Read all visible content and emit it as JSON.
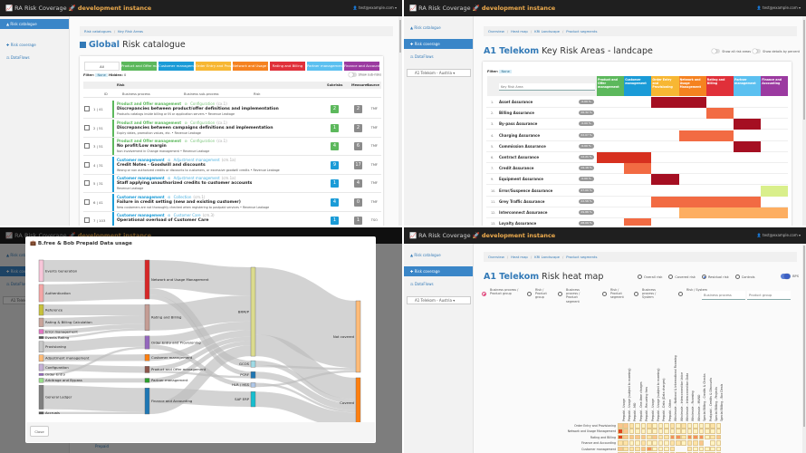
{
  "app": {
    "name": "RA Risk Coverage",
    "instance": "development instance",
    "user": "test@example.com",
    "accent": "#337ab7",
    "instance_color": "#f0ad4e"
  },
  "sidebar": {
    "risk_catalogue": "Risk catalogue",
    "risk_coverage": "Risk coverage",
    "dataflows": "DataFlows",
    "operator_select": "A1 Telekom - Austria"
  },
  "catalogue": {
    "breadcrumb": [
      "Risk catalogues",
      "Key Risk Areas"
    ],
    "title_strong": "Global",
    "title_rest": "Risk catalogue",
    "tabs": [
      {
        "label": "All",
        "color": "#ffffff"
      },
      {
        "label": "Product and Offer management",
        "color": "#5cb85c"
      },
      {
        "label": "Customer management",
        "color": "#1a9bd7"
      },
      {
        "label": "Order Entry and Provisioning",
        "color": "#f7b733"
      },
      {
        "label": "Network and Usage Management",
        "color": "#f58220"
      },
      {
        "label": "Rating and Billing",
        "color": "#e0303a"
      },
      {
        "label": "Partner management",
        "color": "#5bc0f0"
      },
      {
        "label": "Finance and Accounting",
        "color": "#9b3aa0"
      }
    ],
    "filter_label": "Filter:",
    "filter_value": "None",
    "hidden_label": "Hidden:",
    "hidden_value": "0",
    "show_subrisks": "Show sub-risks",
    "columns": {
      "risk": "Risk",
      "subrisks": "Subrisks",
      "measures": "Measures",
      "source": "Source",
      "id": "ID",
      "process": "Business process",
      "subprocess": "Business sub-process",
      "risk_sub": "Risk"
    },
    "rows": [
      {
        "id": "1 | 41",
        "process": "Product and Offer management",
        "subprocess": "Configuration",
        "code": "(cx.1)",
        "title": "Discrepancies between product/offer definitions and implementation",
        "desc": "Products catalogs inside billing or IN or application servers",
        "impact": "Revenue Leakage",
        "subrisks": "2",
        "measures": "2",
        "source": "TMF",
        "color": "#5cb85c"
      },
      {
        "id": "2 | 51",
        "process": "Product and Offer management",
        "subprocess": "Configuration",
        "code": "(cx.1)",
        "title": "Discrepancies between campaigns definitions and implementation",
        "desc": "Expiry dates, promotion values, etc.",
        "impact": "Revenue Leakage",
        "subrisks": "1",
        "measures": "2",
        "source": "TMF",
        "color": "#5cb85c"
      },
      {
        "id": "3 | 51",
        "process": "Product and Offer management",
        "subprocess": "Configuration",
        "code": "(cx.1)",
        "title": "No profit/Low margin",
        "desc": "Non involvement in Change management",
        "impact": "Revenue Leakage",
        "subrisks": "4",
        "measures": "6",
        "source": "TMF",
        "color": "#5cb85c"
      },
      {
        "id": "4 | 31",
        "process": "Customer management",
        "subprocess": "Adjustment management",
        "code": "(cm.1a)",
        "title": "Credit Notes - Goodwill and discounts",
        "desc": "Wrong or non authorized credits or discounts to customers, or excessive goodwill credits",
        "impact": "Revenue Leakage",
        "subrisks": "9",
        "measures": "17",
        "source": "TMF",
        "color": "#1a9bd7"
      },
      {
        "id": "5 | 31",
        "process": "Customer management",
        "subprocess": "Adjustment management",
        "code": "(cm.1a)",
        "title": "Staff applying unauthorized credits to customer accounts",
        "desc": "",
        "impact": "Revenue Leakage",
        "subrisks": "1",
        "measures": "4",
        "source": "TMF",
        "color": "#1a9bd7"
      },
      {
        "id": "6 | 41",
        "process": "Customer management",
        "subprocess": "Collection",
        "code": "(cm.1)",
        "title": "Failure in credit setting (new and existing customer)",
        "desc": "New customers are not thoroughly checked when registering to postpaid services",
        "impact": "Revenue Leakage",
        "subrisks": "4",
        "measures": "0",
        "source": "TMF",
        "color": "#1a9bd7"
      },
      {
        "id": "7 | 103",
        "process": "Customer management",
        "subprocess": "Customer Care",
        "code": "(cm.3)",
        "title": "Operational overload of Customer Care",
        "desc": "",
        "impact": "",
        "subrisks": "1",
        "measures": "1",
        "source": "TSO",
        "color": "#1a9bd7"
      }
    ]
  },
  "kra": {
    "breadcrumb": [
      "Overview",
      "Heat map",
      "KRI Landscape",
      "Product segments"
    ],
    "title_strong": "A1 Telekom",
    "title_rest": "Key Risk Areas - landcape",
    "toggle_all": "Show all risk areas",
    "toggle_percent": "Show details by percent",
    "filter_label": "Filter:",
    "filter_value": "None",
    "search_placeholder": "Key Risk Area",
    "columns": [
      {
        "label": "Product and Offer management",
        "color": "#5cb85c"
      },
      {
        "label": "Customer management",
        "color": "#1a9bd7"
      },
      {
        "label": "Order Entry and Provisioning",
        "color": "#f7b733"
      },
      {
        "label": "Network and Usage Management",
        "color": "#f58220"
      },
      {
        "label": "Rating and Billing",
        "color": "#e0303a"
      },
      {
        "label": "Partner management",
        "color": "#5bc0f0"
      },
      {
        "label": "Finance and Accounting",
        "color": "#9b3aa0"
      }
    ],
    "level_colors": {
      "d": "#a50f22",
      "r": "#d7301f",
      "o": "#f26b43",
      "l": "#fdae61",
      "g": "#d9ef8b"
    },
    "rows": [
      {
        "n": "1",
        "name": "Asset Assurance",
        "pct": "0.00 %",
        "cells": [
          "",
          "",
          "d",
          "d",
          "",
          "",
          ""
        ]
      },
      {
        "n": "2",
        "name": "Billing Assurance",
        "pct": "26.32 %",
        "cells": [
          "",
          "",
          "",
          "",
          "o",
          "",
          ""
        ]
      },
      {
        "n": "3",
        "name": "By-pass Assurance",
        "pct": "0.00 %",
        "cells": [
          "",
          "",
          "",
          "",
          "",
          "d",
          ""
        ]
      },
      {
        "n": "4",
        "name": "Charging Assurance",
        "pct": "22.07 %",
        "cells": [
          "",
          "",
          "",
          "o",
          "o",
          "",
          ""
        ]
      },
      {
        "n": "5",
        "name": "Commission Assurance",
        "pct": "0.00 %",
        "cells": [
          "",
          "",
          "",
          "",
          "",
          "d",
          ""
        ]
      },
      {
        "n": "6",
        "name": "Contract Assurance",
        "pct": "12.21 %",
        "cells": [
          "r",
          "r",
          "",
          "",
          "",
          "",
          ""
        ]
      },
      {
        "n": "7",
        "name": "Credit Assurance",
        "pct": "19.18 %",
        "cells": [
          "",
          "o",
          "",
          "",
          "",
          "",
          ""
        ]
      },
      {
        "n": "9",
        "name": "Equipment Assurance",
        "pct": "0.00 %",
        "cells": [
          "",
          "",
          "d",
          "",
          "",
          "",
          ""
        ]
      },
      {
        "n": "10",
        "name": "Error/Suspence Assurance",
        "pct": "47.00 %",
        "cells": [
          "",
          "",
          "",
          "",
          "",
          "",
          "g"
        ]
      },
      {
        "n": "11",
        "name": "Grey Traffic Assurance",
        "pct": "22.58 %",
        "cells": [
          "",
          "",
          "o",
          "o",
          "o",
          "o",
          ""
        ]
      },
      {
        "n": "12",
        "name": "Interconnect Assurance",
        "pct": "29.88 %",
        "cells": [
          "",
          "",
          "",
          "l",
          "l",
          "l",
          "l"
        ]
      },
      {
        "n": "13",
        "name": "Loyalty Assurance",
        "pct": "28.09 %",
        "cells": [
          "",
          "o",
          "",
          "",
          "",
          "",
          ""
        ]
      }
    ]
  },
  "sankey": {
    "title": "B.free & Bob Prepaid Data usage",
    "close_label": "Close",
    "background_row": "Prepaid",
    "nodes": [
      {
        "name": "Events Generation",
        "col": 0,
        "color": "#f7c6d9"
      },
      {
        "name": "Authentication",
        "col": 0,
        "color": "#f4a6a6"
      },
      {
        "name": "Reference",
        "col": 0,
        "color": "#c7c03a"
      },
      {
        "name": "Rating & Billing Calculation",
        "col": 0,
        "color": "#c9a49a"
      },
      {
        "name": "Error management",
        "col": 0,
        "color": "#e377c2"
      },
      {
        "name": "Events Rating",
        "col": 0,
        "color": "#555555"
      },
      {
        "name": "Provisioning",
        "col": 0,
        "color": "#c7c7c7"
      },
      {
        "name": "Adjustment management",
        "col": 0,
        "color": "#ffbb78"
      },
      {
        "name": "Configuration",
        "col": 0,
        "color": "#c5b0d5"
      },
      {
        "name": "Order Entry",
        "col": 0,
        "color": "#9467bd"
      },
      {
        "name": "Arbitrage and Bypass",
        "col": 0,
        "color": "#98df8a"
      },
      {
        "name": "General Ledger",
        "col": 0,
        "color": "#7f7f7f"
      },
      {
        "name": "Accruals",
        "col": 0,
        "color": "#555555"
      },
      {
        "name": "Network and Usage Management",
        "col": 1,
        "color": "#d62728"
      },
      {
        "name": "Rating and Billing",
        "col": 1,
        "color": "#c49c94"
      },
      {
        "name": "Order Entry and Provisioning",
        "col": 1,
        "color": "#9467bd"
      },
      {
        "name": "Customer management",
        "col": 1,
        "color": "#ff7f0e"
      },
      {
        "name": "Product and Offer management",
        "col": 1,
        "color": "#8c564b"
      },
      {
        "name": "Partner management",
        "col": 1,
        "color": "#2ca02c"
      },
      {
        "name": "Finance and Accounting",
        "col": 1,
        "color": "#1f77b4"
      },
      {
        "name": "BRM/P",
        "col": 2,
        "color": "#dbdb8d"
      },
      {
        "name": "GCOS",
        "col": 2,
        "color": "#9edae5"
      },
      {
        "name": "PCRF",
        "col": 2,
        "color": "#1f77b4"
      },
      {
        "name": "HLR / HSS",
        "col": 2,
        "color": "#aec7e8"
      },
      {
        "name": "SAP ERP",
        "col": 2,
        "color": "#17becf"
      },
      {
        "name": "Not covered",
        "col": 3,
        "color": "#ffbb78"
      },
      {
        "name": "Covered",
        "col": 3,
        "color": "#ff7f0e"
      }
    ],
    "links": [
      [
        0,
        13,
        10
      ],
      [
        1,
        13,
        8
      ],
      [
        2,
        14,
        5
      ],
      [
        3,
        14,
        4
      ],
      [
        4,
        14,
        2
      ],
      [
        5,
        14,
        1
      ],
      [
        6,
        15,
        5
      ],
      [
        7,
        16,
        3
      ],
      [
        8,
        17,
        3
      ],
      [
        9,
        15,
        1
      ],
      [
        10,
        18,
        2
      ],
      [
        11,
        19,
        11
      ],
      [
        12,
        19,
        1
      ],
      [
        13,
        20,
        13
      ],
      [
        13,
        21,
        3
      ],
      [
        13,
        22,
        2
      ],
      [
        14,
        20,
        12
      ],
      [
        15,
        20,
        4
      ],
      [
        15,
        23,
        2
      ],
      [
        16,
        20,
        3
      ],
      [
        17,
        20,
        2
      ],
      [
        17,
        22,
        1
      ],
      [
        18,
        20,
        2
      ],
      [
        19,
        24,
        7
      ],
      [
        19,
        20,
        5
      ],
      [
        20,
        25,
        31
      ],
      [
        20,
        26,
        10
      ],
      [
        21,
        26,
        2
      ],
      [
        21,
        25,
        1
      ],
      [
        22,
        26,
        3
      ],
      [
        23,
        26,
        1
      ],
      [
        23,
        25,
        1
      ],
      [
        24,
        26,
        7
      ]
    ]
  },
  "heatmap": {
    "breadcrumb": [
      "Overview",
      "Heat map",
      "KRI Landscape",
      "Product segments"
    ],
    "title_strong": "A1 Telekom",
    "title_rest": "Risk heat map",
    "risk_modes": [
      {
        "label": "Overall risk",
        "checked": false
      },
      {
        "label": "Covered risk",
        "checked": false
      },
      {
        "label": "Residual risk",
        "checked": true
      },
      {
        "label": "Controls",
        "checked": false
      }
    ],
    "bps_label": "BPS",
    "bps_on": true,
    "views": [
      {
        "label": "Business process / Product group",
        "checked": true
      },
      {
        "label": "Risk / Product group",
        "checked": false
      },
      {
        "label": "Business process / Product segment",
        "checked": false
      },
      {
        "label": "Risk / Product segment",
        "checked": false
      },
      {
        "label": "Business process / System",
        "checked": false
      },
      {
        "label": "Risk / System",
        "checked": false
      }
    ],
    "search_process_placeholder": "Business process",
    "search_group_placeholder": "Product group",
    "level_colors": [
      "#ffffff",
      "#fff3c4",
      "#fde3a7",
      "#fbc58d",
      "#f4915e",
      "#e0451f"
    ],
    "columns": [
      "Prepaid - Usage",
      "Prepaid - Usage (subject to roaming)",
      "Prepaid - MO",
      "Prepaid - One-time charges",
      "Prepaid - Recurring fees",
      "Prepaid - Usage",
      "Prepaid - Usage (subject to roaming)",
      "Prepaid - Data (Data charges)",
      "Prepaid - Other",
      "Wholesale - National & International Roaming",
      "Wholesale - Interconnection Voice",
      "Wholesale - Interconnection Data",
      "Wholesale - Roaming",
      "Wholesale - MVNO",
      "Special Billing - Credits & Checks",
      "Postpaid - Credits & Discounts",
      "Special Billing - Projects",
      "Special Billing - Box Deals"
    ],
    "rows": [
      {
        "label": "Order Entry and Provisioning",
        "levels": [
          3,
          3,
          2,
          1,
          1,
          2,
          1,
          1,
          1,
          2,
          1,
          2,
          1,
          1,
          1,
          1,
          2,
          1
        ]
      },
      {
        "label": "Network and Usage Management",
        "levels": [
          5,
          3,
          1,
          1,
          1,
          1,
          1,
          1,
          1,
          1,
          1,
          1,
          1,
          1,
          1,
          1,
          1,
          1
        ]
      },
      {
        "label": "Rating and Billing",
        "levels": [
          5,
          3,
          3,
          3,
          3,
          2,
          3,
          2,
          2,
          4,
          4,
          2,
          4,
          4,
          4,
          1,
          2,
          3
        ]
      },
      {
        "label": "Finance and Accounting",
        "levels": [
          2,
          2,
          1,
          1,
          2,
          1,
          1,
          1,
          1,
          2,
          2,
          1,
          2,
          2,
          3,
          0,
          1,
          1
        ]
      },
      {
        "label": "Customer management",
        "levels": [
          3,
          2,
          2,
          2,
          3,
          4,
          1,
          1,
          1,
          2,
          0,
          0,
          2,
          1,
          1,
          1,
          1,
          1
        ]
      },
      {
        "label": "Product and Offer management",
        "levels": [
          2,
          2,
          1,
          1,
          1,
          1,
          1,
          1,
          1,
          1,
          1,
          1,
          1,
          1,
          1,
          1,
          1,
          1
        ]
      },
      {
        "label": "Partner management",
        "levels": [
          0,
          1,
          0,
          0,
          0,
          1,
          1,
          1,
          1,
          0,
          1,
          1,
          1,
          1,
          5,
          1,
          1,
          1
        ]
      }
    ]
  }
}
